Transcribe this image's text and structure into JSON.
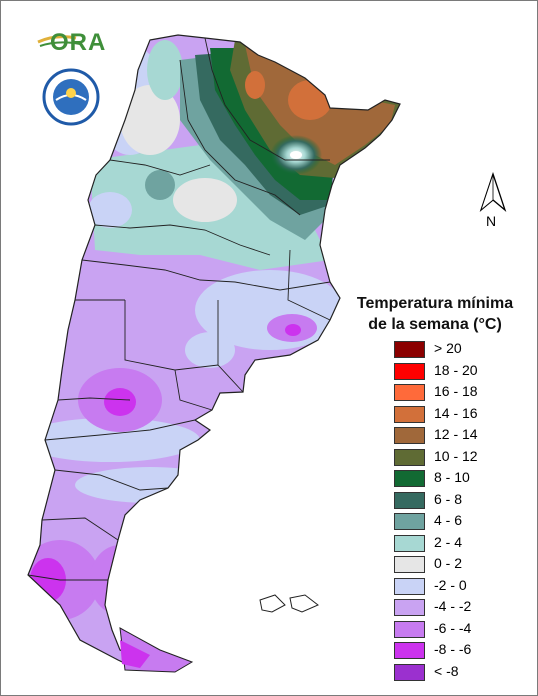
{
  "header": {
    "logo_text": "ORA",
    "seal_icon": "smn-seal-icon"
  },
  "map": {
    "north_label": "N",
    "north_icon": "north-arrow-icon",
    "focus_colors": {
      "northeast_warm": "#c8703a",
      "north_green": "#1e6e3a",
      "center_teal": "#a9d8d1",
      "south_lilac": "#c89af0"
    }
  },
  "legend": {
    "title_line1": "Temperatura mínima",
    "title_line2": "de la semana (°C)",
    "items": [
      {
        "label": "> 20",
        "color": "#8b0000"
      },
      {
        "label": "18 - 20",
        "color": "#ff0000"
      },
      {
        "label": "16 - 18",
        "color": "#ff6a3a"
      },
      {
        "label": "14 - 16",
        "color": "#d2703a"
      },
      {
        "label": "12 - 14",
        "color": "#a0683a"
      },
      {
        "label": "10 - 12",
        "color": "#5f6b34"
      },
      {
        "label": "8 - 10",
        "color": "#126a33"
      },
      {
        "label": "6 - 8",
        "color": "#356a60"
      },
      {
        "label": "4 - 6",
        "color": "#6fa3a0"
      },
      {
        "label": "2 - 4",
        "color": "#a7d8d3"
      },
      {
        "label": "0 - 2",
        "color": "#e6e6e6"
      },
      {
        "label": "-2 - 0",
        "color": "#c9d3f6"
      },
      {
        "label": "-4 - -2",
        "color": "#c9a3f2"
      },
      {
        "label": "-6 - -4",
        "color": "#c77bf0"
      },
      {
        "label": "-8 - -6",
        "color": "#cc33ee"
      },
      {
        "label": "< -8",
        "color": "#9b30cf"
      }
    ]
  }
}
